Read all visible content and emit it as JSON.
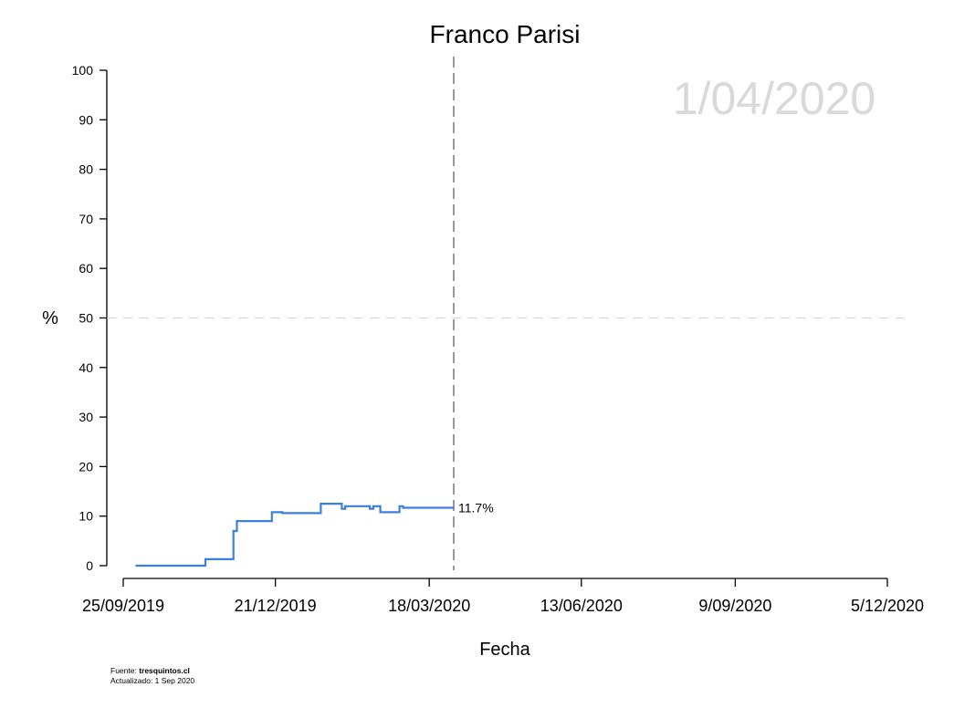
{
  "chart_data": {
    "type": "line",
    "title": "Franco Parisi",
    "xlabel": "Fecha",
    "ylabel": "%",
    "ylim": [
      0,
      100
    ],
    "yticks": [
      0,
      10,
      20,
      30,
      40,
      50,
      60,
      70,
      80,
      90,
      100
    ],
    "xlim": [
      "2019-09-25",
      "2020-12-05"
    ],
    "xticks": [
      "2019-09-25",
      "2019-12-21",
      "2020-03-18",
      "2020-06-13",
      "2020-09-09",
      "2020-12-05"
    ],
    "xtick_labels": [
      "25/09/2019",
      "21/12/2019",
      "18/03/2020",
      "13/06/2020",
      "9/09/2020",
      "5/12/2020"
    ],
    "current_date": "2020-04-01",
    "current_date_label": "1/04/2020",
    "reference_y": 50,
    "grid": false,
    "line_color": "#3b7fe0",
    "series": [
      {
        "step": true,
        "points": [
          [
            "2019-10-02",
            0
          ],
          [
            "2019-11-11",
            1.3
          ],
          [
            "2019-11-27",
            7.0
          ],
          [
            "2019-11-29",
            9.0
          ],
          [
            "2019-12-19",
            10.8
          ],
          [
            "2019-12-25",
            10.6
          ],
          [
            "2020-01-16",
            12.5
          ],
          [
            "2020-01-28",
            11.5
          ],
          [
            "2020-01-30",
            12.0
          ],
          [
            "2020-02-13",
            11.5
          ],
          [
            "2020-02-15",
            12.0
          ],
          [
            "2020-02-19",
            10.8
          ],
          [
            "2020-03-01",
            12.0
          ],
          [
            "2020-03-03",
            11.7
          ],
          [
            "2020-04-01",
            11.7
          ]
        ],
        "end_label": "11.7%"
      }
    ]
  },
  "footer": {
    "source_prefix": "Fuente: ",
    "source_name": "tresquintos.cl",
    "updated": "Actualizado: 1 Sep 2020"
  }
}
